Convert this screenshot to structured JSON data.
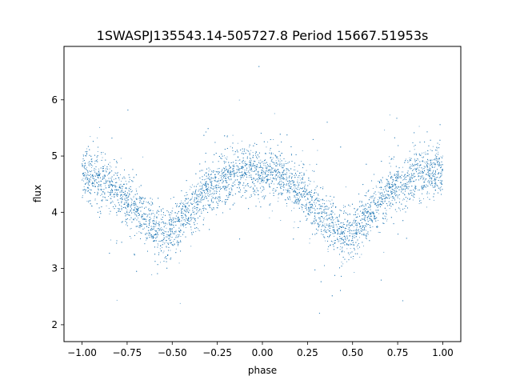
{
  "chart_data": {
    "type": "scatter",
    "title": "1SWASPJ135543.14-505727.8 Period 15667.51953s",
    "xlabel": "phase",
    "ylabel": "flux",
    "xlim": [
      -1.1,
      1.1
    ],
    "ylim": [
      1.7,
      6.95
    ],
    "x_ticks": [
      -1.0,
      -0.75,
      -0.5,
      -0.25,
      0.0,
      0.25,
      0.5,
      0.75,
      1.0
    ],
    "x_tick_labels": [
      "−1.00",
      "−0.75",
      "−0.50",
      "−0.25",
      "0.00",
      "0.25",
      "0.50",
      "0.75",
      "1.00"
    ],
    "y_ticks": [
      2,
      3,
      4,
      5,
      6
    ],
    "y_tick_labels": [
      "2",
      "3",
      "4",
      "5",
      "6"
    ],
    "grid": false,
    "point_color": "#1f77b4",
    "series": [
      {
        "x": [
          -1.0,
          -0.9,
          -0.8,
          -0.7,
          -0.6,
          -0.55,
          -0.5,
          -0.4,
          -0.3,
          -0.2,
          -0.1,
          0.0,
          0.1,
          0.2,
          0.3,
          0.4,
          0.45,
          0.5,
          0.6,
          0.7,
          0.8,
          0.9,
          1.0
        ],
        "y": [
          4.7,
          4.55,
          4.35,
          4.05,
          3.75,
          3.6,
          3.65,
          4.05,
          4.4,
          4.62,
          4.72,
          4.72,
          4.65,
          4.4,
          4.05,
          3.72,
          3.6,
          3.65,
          4.0,
          4.35,
          4.58,
          4.7,
          4.72
        ],
        "scatter_sd": 0.22,
        "n_points": 9000
      }
    ]
  }
}
